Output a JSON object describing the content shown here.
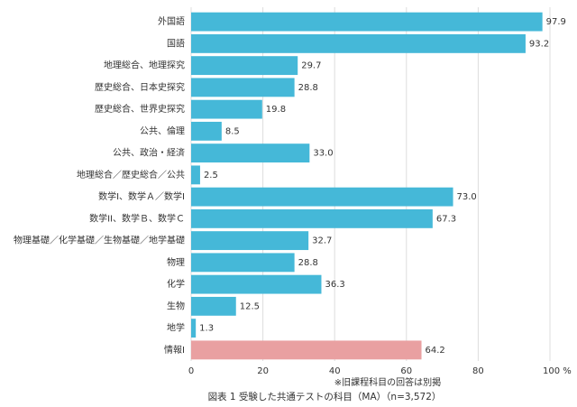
{
  "chart_data": {
    "type": "barh",
    "title": "図表 1 受験した共通テストの科目（MA）（n=3,572）",
    "note": "※旧課程科目の回答は別掲",
    "categories": [
      "外国語",
      "国語",
      "地理総合、地理探究",
      "歴史総合、日本史探究",
      "歴史総合、世界史探究",
      "公共、倫理",
      "公共、政治・経済",
      "地理総合／歴史総合／公共",
      "数学Ⅰ、数学Ａ／数学Ⅰ",
      "数学ⅠⅠ、数学Ｂ、数学Ｃ",
      "物理基礎／化学基礎／生物基礎／地学基礎",
      "物理",
      "化学",
      "生物",
      "地学",
      "情報Ⅰ"
    ],
    "values": [
      97.9,
      93.2,
      29.7,
      28.8,
      19.8,
      8.5,
      33.0,
      2.5,
      73.0,
      67.3,
      32.7,
      28.8,
      36.3,
      12.5,
      1.3,
      64.2
    ],
    "value_labels": [
      "97.9",
      "93.2",
      "29.7",
      "28.8",
      "19.8",
      "8.5",
      "33.0",
      "2.5",
      "73.0",
      "67.3",
      "32.7",
      "28.8",
      "36.3",
      "12.5",
      "1.3",
      "64.2"
    ],
    "colors": [
      "#45b8d8",
      "#45b8d8",
      "#45b8d8",
      "#45b8d8",
      "#45b8d8",
      "#45b8d8",
      "#45b8d8",
      "#45b8d8",
      "#45b8d8",
      "#45b8d8",
      "#45b8d8",
      "#45b8d8",
      "#45b8d8",
      "#45b8d8",
      "#45b8d8",
      "#e9a0a1"
    ],
    "xlim": [
      0,
      100
    ],
    "xticks": [
      0,
      20,
      40,
      60,
      80,
      {
        "value": 100,
        "label": "100 %"
      }
    ],
    "grid": true
  }
}
